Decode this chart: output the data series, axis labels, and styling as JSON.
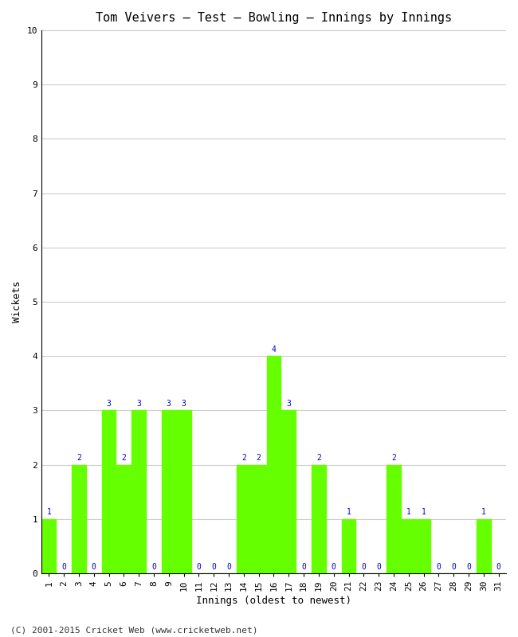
{
  "title": "Tom Veivers – Test – Bowling – Innings by Innings",
  "xlabel": "Innings (oldest to newest)",
  "ylabel": "Wickets",
  "bar_color": "#66ff00",
  "bar_edge_color": "#66ff00",
  "label_color": "#0000cc",
  "background_color": "#ffffff",
  "grid_color": "#cccccc",
  "ylim": [
    0,
    10
  ],
  "yticks": [
    0,
    1,
    2,
    3,
    4,
    5,
    6,
    7,
    8,
    9,
    10
  ],
  "innings": [
    1,
    2,
    3,
    4,
    5,
    6,
    7,
    8,
    9,
    10,
    11,
    12,
    13,
    14,
    15,
    16,
    17,
    18,
    19,
    20,
    21,
    22,
    23,
    24,
    25,
    26,
    27,
    28,
    29,
    30,
    31
  ],
  "wickets": [
    1,
    0,
    2,
    0,
    3,
    2,
    3,
    0,
    3,
    3,
    0,
    0,
    0,
    2,
    2,
    4,
    3,
    0,
    2,
    0,
    1,
    0,
    0,
    2,
    1,
    1,
    0,
    0,
    0,
    1,
    0
  ],
  "copyright": "(C) 2001-2015 Cricket Web (www.cricketweb.net)",
  "figsize": [
    6.5,
    8.0
  ],
  "dpi": 100,
  "title_fontsize": 11,
  "axis_label_fontsize": 9,
  "tick_label_fontsize": 8,
  "bar_label_fontsize": 7,
  "copyright_fontsize": 8
}
